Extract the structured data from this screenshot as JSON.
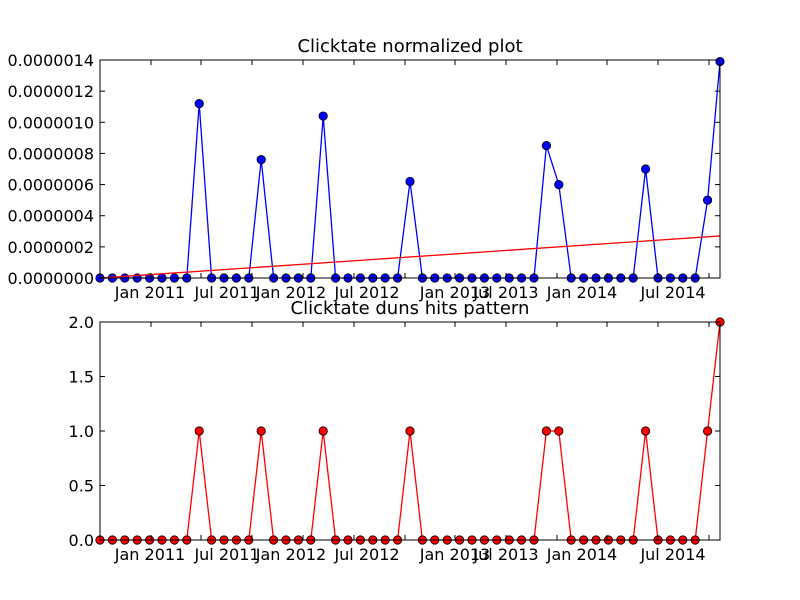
{
  "chart_data": [
    {
      "type": "line",
      "title": "Clicktate normalized plot",
      "xlabel": "",
      "ylabel": "",
      "x_tick_labels": [
        "Jan 2011",
        "Jul 2011",
        "Jan 2012",
        "Jul 2012",
        "Jan 2013",
        "Jul 2013",
        "Jan 2014",
        "Jul 2014"
      ],
      "y_tick_labels": [
        "0.0000000",
        "0.0000002",
        "0.0000004",
        "0.0000006",
        "0.0000008",
        "0.0000010",
        "0.0000012",
        "0.0000014"
      ],
      "ylim": [
        0,
        1.4e-06
      ],
      "grid": false,
      "series": [
        {
          "color": "#0000ff",
          "marker": "circle",
          "values": [
            0,
            0,
            0,
            0,
            0,
            0,
            0,
            0,
            1.12e-06,
            0,
            0,
            0,
            0,
            7.6e-07,
            0,
            0,
            0,
            0,
            1.04e-06,
            0,
            0,
            0,
            0,
            0,
            0,
            6.2e-07,
            0,
            0,
            0,
            0,
            0,
            0,
            0,
            0,
            0,
            0,
            8.5e-07,
            6e-07,
            0,
            0,
            0,
            0,
            0,
            0,
            7e-07,
            0,
            0,
            0,
            0,
            5e-07,
            1.39e-06
          ]
        },
        {
          "color": "#ff0000",
          "marker": "none",
          "fit": "linear",
          "values_start_end": [
            0,
            2.7e-07
          ]
        }
      ]
    },
    {
      "type": "line",
      "title": "Clicktate duns hits pattern",
      "xlabel": "",
      "ylabel": "",
      "x_tick_labels": [
        "Jan 2011",
        "Jul 2011",
        "Jan 2012",
        "Jul 2012",
        "Jan 2013",
        "Jul 2013",
        "Jan 2014",
        "Jul 2014"
      ],
      "y_tick_labels": [
        "0.0",
        "0.5",
        "1.0",
        "1.5",
        "2.0"
      ],
      "ylim": [
        0,
        2
      ],
      "grid": false,
      "series": [
        {
          "color": "#ff0000",
          "marker": "circle",
          "values": [
            0,
            0,
            0,
            0,
            0,
            0,
            0,
            0,
            1,
            0,
            0,
            0,
            0,
            1,
            0,
            0,
            0,
            0,
            1,
            0,
            0,
            0,
            0,
            0,
            0,
            1,
            0,
            0,
            0,
            0,
            0,
            0,
            0,
            0,
            0,
            0,
            1,
            1,
            0,
            0,
            0,
            0,
            0,
            0,
            1,
            0,
            0,
            0,
            0,
            1,
            2
          ]
        }
      ]
    }
  ]
}
